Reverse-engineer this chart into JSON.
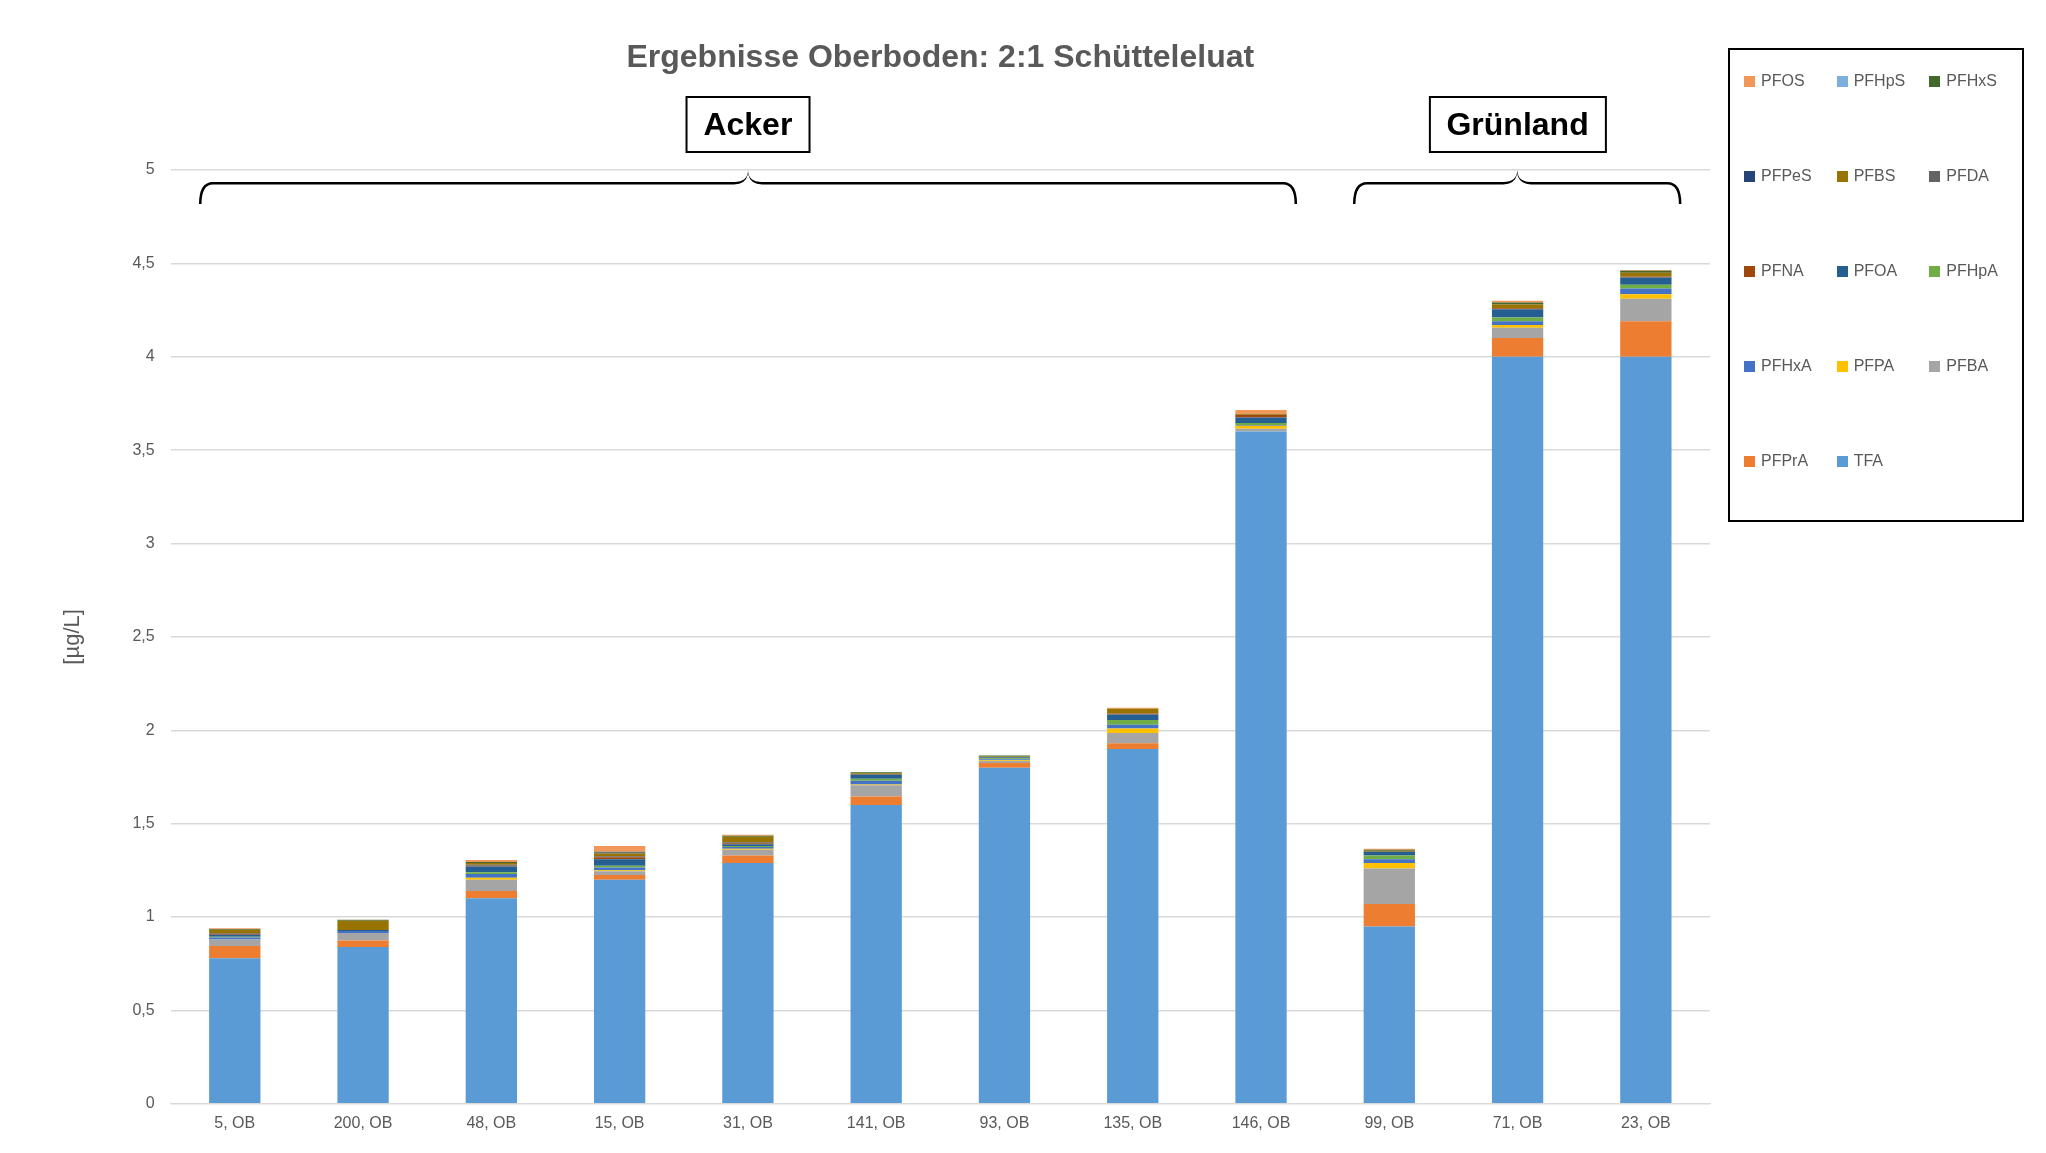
{
  "chart_data": {
    "type": "bar",
    "stacked": true,
    "title": "Ergebnisse Oberboden: 2:1 Schütteleluat",
    "ylabel": "[µg/L]",
    "annotations": [
      "Acker",
      "Grünland"
    ],
    "categories": [
      "5, OB",
      "200, OB",
      "48, OB",
      "15, OB",
      "31, OB",
      "141, OB",
      "93, OB",
      "135, OB",
      "146, OB",
      "99, OB",
      "71, OB",
      "23, OB"
    ],
    "ylim": [
      0,
      5
    ],
    "yticks": [
      0,
      {
        "value": 0.5,
        "label": "0,5"
      },
      1,
      {
        "value": 1.5,
        "label": "1,5"
      },
      2,
      {
        "value": 2.5,
        "label": "2,5"
      },
      3,
      {
        "value": 3.5,
        "label": "3,5"
      },
      4,
      {
        "value": 4.5,
        "label": "4,5"
      },
      5
    ],
    "grid": "y",
    "legend": "right",
    "series": [
      {
        "name": "TFA",
        "color": "#5b9bd5",
        "values": [
          0.78,
          0.84,
          1.1,
          1.2,
          1.29,
          1.6,
          1.8,
          1.9,
          3.6,
          0.95,
          4.0,
          4.0
        ]
      },
      {
        "name": "PFPrA",
        "color": "#ed7d31",
        "values": [
          0.065,
          0.035,
          0.04,
          0.025,
          0.04,
          0.045,
          0.025,
          0.03,
          null,
          0.12,
          0.1,
          0.19
        ]
      },
      {
        "name": "PFBA",
        "color": "#a5a5a5",
        "values": [
          0.035,
          0.04,
          0.06,
          0.02,
          0.03,
          0.06,
          0.01,
          0.055,
          0.015,
          0.19,
          0.055,
          0.12
        ]
      },
      {
        "name": "PFPA",
        "color": "#ffc000",
        "values": [
          null,
          0,
          0.01,
          0.005,
          0.005,
          0.005,
          0.005,
          0.025,
          0.015,
          0.03,
          0.015,
          0.025
        ]
      },
      {
        "name": "PFHxA",
        "color": "#4472c4",
        "values": [
          0.01,
          0.01,
          0.02,
          0.015,
          0.01,
          0.02,
          0.005,
          0.02,
          0.005,
          0.02,
          0.02,
          0.03
        ]
      },
      {
        "name": "PFHpA",
        "color": "#70ad47",
        "values": [
          0.005,
          0,
          0.01,
          0.01,
          0.005,
          0.01,
          0.005,
          0.025,
          0.01,
          0.02,
          0.02,
          0.02
        ]
      },
      {
        "name": "PFOA",
        "color": "#255e91",
        "values": [
          0.01,
          0.005,
          0.03,
          0.035,
          0.01,
          0.02,
          0.005,
          0.03,
          0.03,
          0.02,
          0.045,
          0.04
        ]
      },
      {
        "name": "PFNA",
        "color": "#9e480e",
        "values": [
          0.005,
          0,
          0.005,
          0.01,
          0.005,
          0,
          0,
          0.005,
          0.015,
          0,
          0.005,
          0.005
        ]
      },
      {
        "name": "PFDA",
        "color": "#636363",
        "values": [
          0.005,
          0,
          0.005,
          0.005,
          0.005,
          0.005,
          0,
          0,
          0,
          0,
          0,
          0
        ]
      },
      {
        "name": "PFBS",
        "color": "#997300",
        "values": [
          0.015,
          0.05,
          0.01,
          0.015,
          0.03,
          0.005,
          0.005,
          0.025,
          0.005,
          0.005,
          0.02,
          0.02
        ]
      },
      {
        "name": "PFPeS",
        "color": "#264478",
        "values": [
          0,
          0,
          0,
          0.005,
          0,
          0,
          0,
          0,
          0,
          0,
          0,
          0
        ]
      },
      {
        "name": "PFHxS",
        "color": "#43682b",
        "values": [
          0.005,
          0.005,
          0.005,
          0.005,
          0.005,
          0.005,
          0.005,
          0,
          0,
          0.005,
          0.01,
          0.01
        ]
      },
      {
        "name": "PFHpS",
        "color": "#7cafdd",
        "values": [
          0,
          0,
          0,
          0,
          0,
          0,
          0,
          0,
          0,
          0,
          0,
          0
        ]
      },
      {
        "name": "PFOS",
        "color": "#f1975a",
        "values": [
          0.005,
          0,
          0.01,
          0.03,
          0.005,
          0,
          0,
          0.005,
          0.02,
          0.005,
          0.01,
          0.005
        ]
      }
    ]
  }
}
